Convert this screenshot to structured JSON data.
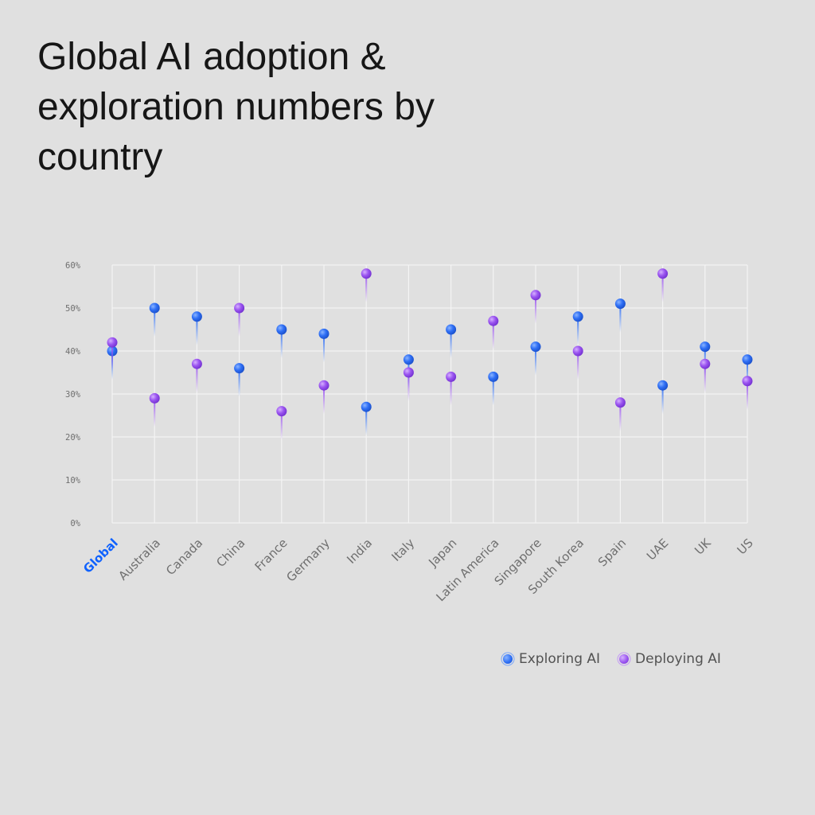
{
  "chart_data": {
    "type": "scatter",
    "title": "Global AI adoption & exploration numbers by country",
    "categories": [
      "Global",
      "Australia",
      "Canada",
      "China",
      "France",
      "Germany",
      "India",
      "Italy",
      "Japan",
      "Latin America",
      "Singapore",
      "South Korea",
      "Spain",
      "UAE",
      "UK",
      "US"
    ],
    "highlight_category": "Global",
    "yticks": [
      "0%",
      "10%",
      "20%",
      "30%",
      "40%",
      "50%",
      "60%"
    ],
    "ylim": [
      0,
      60
    ],
    "grid": true,
    "legend_position": "bottom-right",
    "series": [
      {
        "name": "Exploring AI",
        "color": "#2f6ff5",
        "values": [
          40,
          50,
          48,
          36,
          45,
          44,
          27,
          38,
          45,
          34,
          41,
          48,
          51,
          32,
          41,
          38
        ]
      },
      {
        "name": "Deploying AI",
        "color": "#9b55f0",
        "values": [
          42,
          29,
          37,
          50,
          26,
          32,
          58,
          35,
          34,
          47,
          53,
          40,
          28,
          58,
          37,
          33
        ]
      }
    ]
  },
  "colors": {
    "highlight": "#0f62fe",
    "axis_text": "#6f6f6f",
    "grid": "#f4f4f4"
  }
}
